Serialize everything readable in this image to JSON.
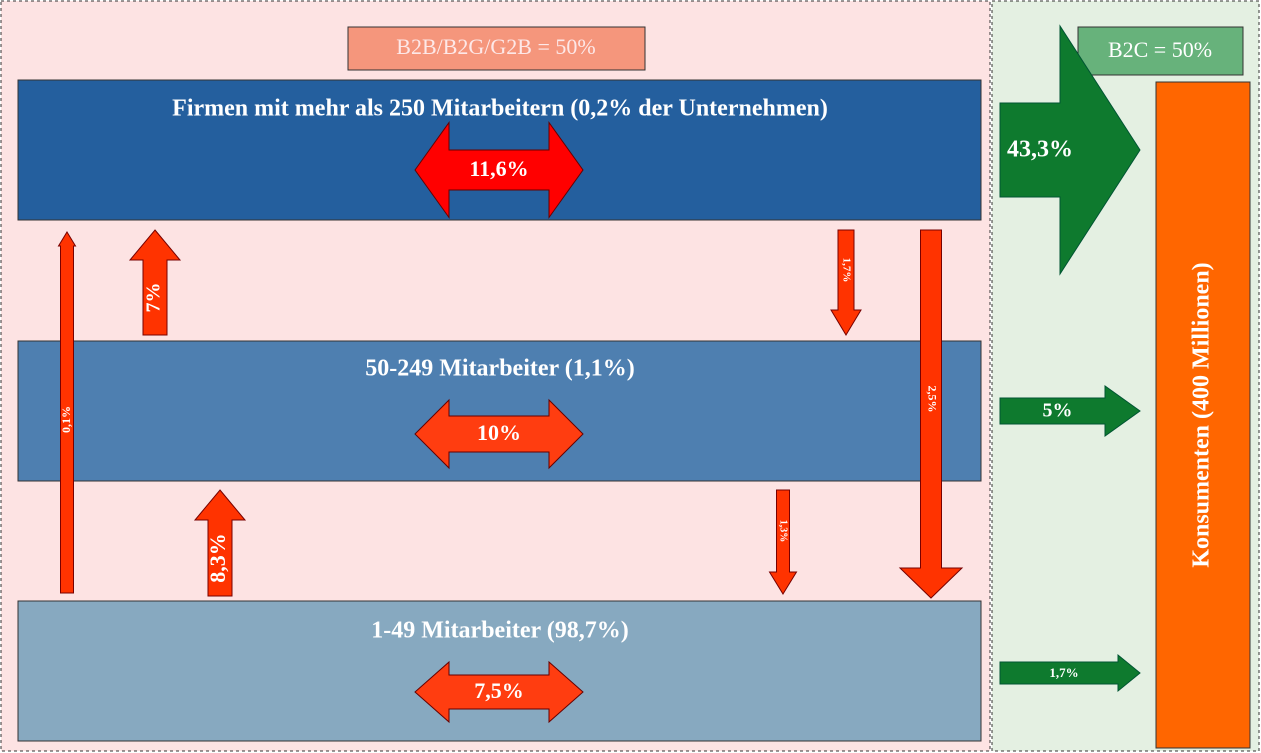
{
  "sections": {
    "b2b": "B2B/B2G/G2B = 50%",
    "b2c": "B2C = 50%"
  },
  "tiers": [
    {
      "title": "Firmen mit mehr als 250 Mitarbeitern (0,2% der Unternehmen)",
      "internal": "11,6%"
    },
    {
      "title": "50-249 Mitarbeiter (1,1%)",
      "internal": "10%"
    },
    {
      "title": "1-49 Mitarbeiter (98,7%)",
      "internal": "7,5%"
    }
  ],
  "flows": [
    {
      "label": "0,1%"
    },
    {
      "label": "7%"
    },
    {
      "label": "1,7%"
    },
    {
      "label": "2,5%"
    },
    {
      "label": "8,3%"
    },
    {
      "label": "1,3%"
    }
  ],
  "consumer_flows": [
    {
      "label": "43,3%"
    },
    {
      "label": "5%"
    },
    {
      "label": "1,7%"
    }
  ],
  "consumers": "Konsumenten (400 Millionen)"
}
